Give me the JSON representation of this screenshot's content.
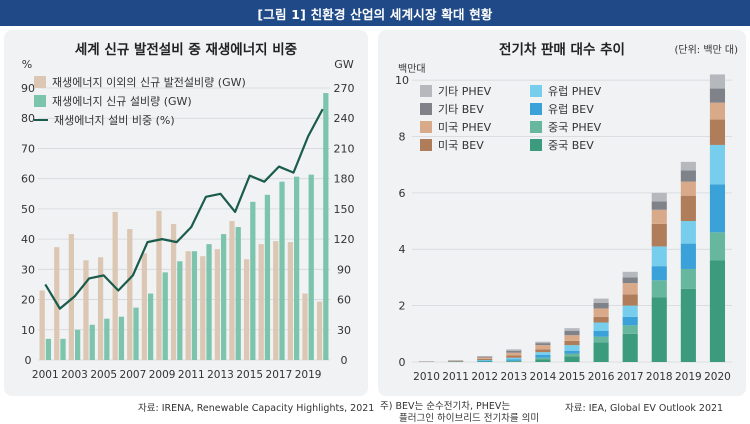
{
  "banner": {
    "title": "[그림 1] 친환경 산업의 세계시장 확대 현황"
  },
  "colors": {
    "banner_bg": "#1f4a87",
    "non_renewable": "#dcc6b4",
    "renewable": "#7cc4ac",
    "line": "#1a5c4c",
    "other_phev": "#b5b8bd",
    "other_bev": "#7f8389",
    "eu_phev": "#77cdec",
    "eu_bev": "#3aa1d9",
    "us_phev": "#d9aa8a",
    "us_bev": "#b07d5a",
    "cn_phev": "#66b79d",
    "cn_bev": "#3c9b7d"
  },
  "left": {
    "title": "세계 신규 발전설비 중 재생에너지 비중",
    "left_unit": "%",
    "right_unit": "GW",
    "source": "자료: IRENA, Renewable Capacity Highlights, 2021",
    "legend": [
      {
        "label": "재생에너지 이외의 신규 발전설비량 (GW)",
        "kind": "bar",
        "color": "#dcc6b4"
      },
      {
        "label": "재생에너지 신규 설비량 (GW)",
        "kind": "bar",
        "color": "#7cc4ac"
      },
      {
        "label": "재생에너지 설비 비중 (%)",
        "kind": "line",
        "color": "#1a5c4c"
      }
    ]
  },
  "right": {
    "title": "전기차 판매 대수 추이",
    "unit_note": "(단위: 백만 대)",
    "y_unit": "백만대",
    "source": "자료: IEA, Global EV Outlook 2021",
    "footnote": [
      "주) BEV는 순수전기차, PHEV는",
      "플러그인 하이브리드 전기차를 의미"
    ],
    "legend": [
      {
        "label": "기타 PHEV",
        "color": "#b5b8bd"
      },
      {
        "label": "유럽 PHEV",
        "color": "#77cdec"
      },
      {
        "label": "기타 BEV",
        "color": "#7f8389"
      },
      {
        "label": "유럽 BEV",
        "color": "#3aa1d9"
      },
      {
        "label": "미국 PHEV",
        "color": "#d9aa8a"
      },
      {
        "label": "중국 PHEV",
        "color": "#66b79d"
      },
      {
        "label": "미국 BEV",
        "color": "#b07d5a"
      },
      {
        "label": "중국 BEV",
        "color": "#3c9b7d"
      }
    ]
  },
  "chart_data": [
    {
      "type": "bar",
      "title": "세계 신규 발전설비 중 재생에너지 비중",
      "x": [
        2001,
        2002,
        2003,
        2004,
        2005,
        2006,
        2007,
        2008,
        2009,
        2010,
        2011,
        2012,
        2013,
        2014,
        2015,
        2016,
        2017,
        2018,
        2019,
        2020
      ],
      "x_tick_labels": [
        "2001",
        "2003",
        "2005",
        "2007",
        "2009",
        "2011",
        "2013",
        "2015",
        "2017",
        "2019"
      ],
      "y_left": {
        "label": "%",
        "range": [
          0,
          90
        ],
        "ticks": [
          0,
          10,
          20,
          30,
          40,
          50,
          60,
          70,
          80,
          90
        ]
      },
      "y_right": {
        "label": "GW",
        "range": [
          0,
          270
        ],
        "ticks": [
          0,
          30,
          60,
          90,
          120,
          150,
          180,
          210,
          240,
          270
        ]
      },
      "series": [
        {
          "name": "재생에너지 이외의 신규 발전설비량 (GW)",
          "kind": "bar",
          "axis": "right",
          "values": [
            69,
            112,
            125,
            99,
            102,
            147,
            130,
            106,
            148,
            135,
            108,
            103,
            110,
            138,
            100,
            115,
            118,
            117,
            66,
            58
          ]
        },
        {
          "name": "재생에너지 신규 설비량 (GW)",
          "kind": "bar",
          "axis": "right",
          "values": [
            21,
            21,
            30,
            35,
            41,
            43,
            52,
            66,
            87,
            98,
            108,
            115,
            125,
            132,
            157,
            164,
            177,
            182,
            184,
            265
          ]
        },
        {
          "name": "재생에너지 설비 비중 (%)",
          "kind": "line",
          "axis": "left",
          "values": [
            25,
            17,
            21,
            27,
            28,
            23,
            28,
            39,
            40,
            39,
            44,
            54,
            55,
            49,
            61,
            59,
            64,
            62,
            74,
            83
          ]
        }
      ],
      "grid": true,
      "legend_position": "top-left"
    },
    {
      "type": "bar",
      "stacked": true,
      "title": "전기차 판매 대수 추이",
      "categories": [
        "2010",
        "2011",
        "2012",
        "2013",
        "2014",
        "2015",
        "2016",
        "2017",
        "2018",
        "2019",
        "2020"
      ],
      "y_label": "백만대",
      "unit": "백만 대",
      "ylim": [
        0,
        10.5
      ],
      "y_ticks": [
        0,
        2,
        4,
        6,
        8,
        10
      ],
      "series": [
        {
          "name": "중국 BEV",
          "values": [
            0.0,
            0.01,
            0.02,
            0.03,
            0.1,
            0.2,
            0.7,
            1.0,
            2.3,
            2.6,
            3.6
          ]
        },
        {
          "name": "중국 PHEV",
          "values": [
            0.0,
            0.0,
            0.0,
            0.01,
            0.05,
            0.1,
            0.2,
            0.3,
            0.6,
            0.7,
            1.0
          ]
        },
        {
          "name": "유럽 BEV",
          "values": [
            0.0,
            0.01,
            0.03,
            0.05,
            0.1,
            0.1,
            0.2,
            0.3,
            0.5,
            0.9,
            1.7
          ]
        },
        {
          "name": "유럽 PHEV",
          "values": [
            0.0,
            0.0,
            0.02,
            0.06,
            0.1,
            0.2,
            0.3,
            0.4,
            0.7,
            0.8,
            1.4
          ]
        },
        {
          "name": "미국 BEV",
          "values": [
            0.01,
            0.02,
            0.04,
            0.08,
            0.1,
            0.15,
            0.2,
            0.4,
            0.8,
            0.9,
            0.9
          ]
        },
        {
          "name": "미국 PHEV",
          "values": [
            0.0,
            0.01,
            0.05,
            0.1,
            0.15,
            0.2,
            0.3,
            0.4,
            0.5,
            0.5,
            0.6
          ]
        },
        {
          "name": "기타 BEV",
          "values": [
            0.01,
            0.01,
            0.03,
            0.07,
            0.07,
            0.15,
            0.2,
            0.2,
            0.3,
            0.4,
            0.5
          ]
        },
        {
          "name": "기타 PHEV",
          "values": [
            0.0,
            0.0,
            0.02,
            0.05,
            0.05,
            0.1,
            0.15,
            0.2,
            0.3,
            0.3,
            0.5
          ]
        }
      ],
      "grid": true,
      "legend_position": "top-left"
    }
  ]
}
